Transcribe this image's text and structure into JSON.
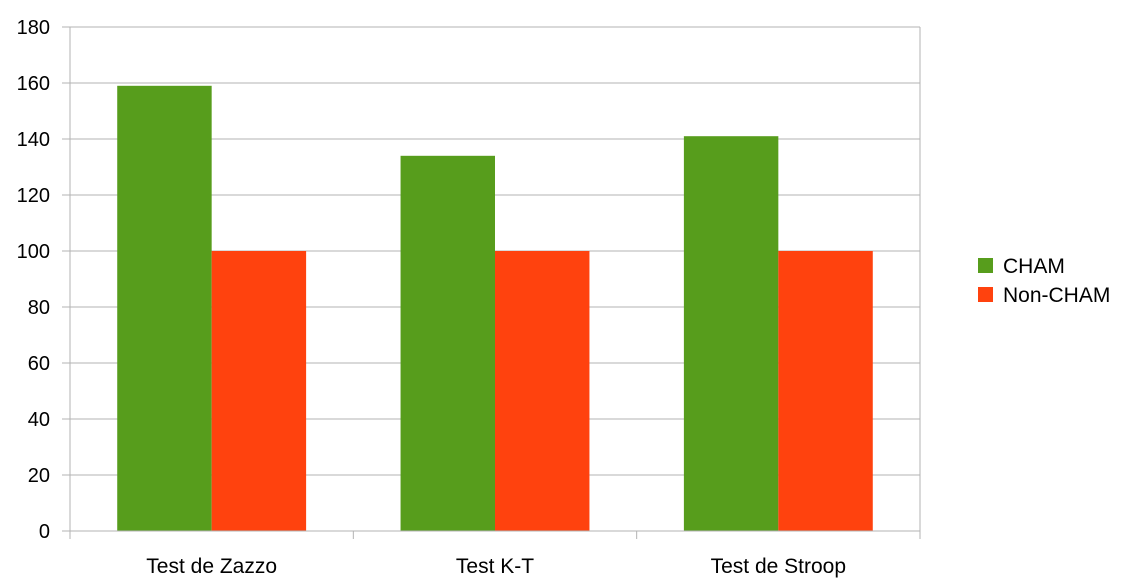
{
  "chart_data": {
    "type": "bar",
    "categories": [
      "Test de Zazzo",
      "Test K-T",
      "Test de Stroop"
    ],
    "series": [
      {
        "name": "CHAM",
        "values": [
          159,
          134,
          141
        ],
        "color": "#579D1C"
      },
      {
        "name": "Non-CHAM",
        "values": [
          100,
          100,
          100
        ],
        "color": "#FF420E"
      }
    ],
    "title": "",
    "xlabel": "",
    "ylabel": "",
    "ylim": [
      0,
      180
    ],
    "y_ticks": [
      0,
      20,
      40,
      60,
      80,
      100,
      120,
      140,
      160,
      180
    ],
    "grid": true,
    "legend_position": "right"
  }
}
